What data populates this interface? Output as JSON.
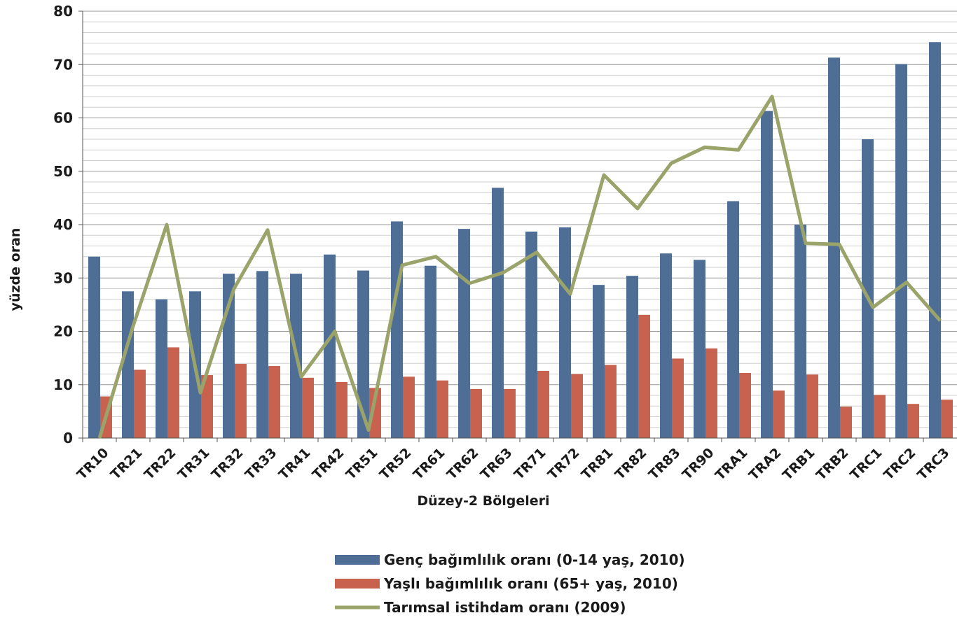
{
  "chart_data": {
    "type": "bar_line",
    "xlabel": "Düzey-2 Bölgeleri",
    "ylabel": "yüzde oran",
    "categories": [
      "TR10",
      "TR21",
      "TR22",
      "TR31",
      "TR32",
      "TR33",
      "TR41",
      "TR42",
      "TR51",
      "TR52",
      "TR61",
      "TR62",
      "TR63",
      "TR71",
      "TR72",
      "TR81",
      "TR82",
      "TR83",
      "TR90",
      "TRA1",
      "TRA2",
      "TRB1",
      "TRB2",
      "TRC1",
      "TRC2",
      "TRC3"
    ],
    "series": [
      {
        "name": "Genç bağımlılık oranı (0-14 yaş, 2010)",
        "type": "bar",
        "color": "#4f6e96",
        "values": [
          34,
          27.5,
          26,
          27.5,
          30.8,
          31.3,
          30.8,
          34.4,
          31.4,
          40.6,
          32.3,
          39.2,
          46.9,
          38.7,
          39.5,
          28.7,
          30.4,
          34.6,
          33.4,
          44.4,
          61.3,
          40,
          71.3,
          56,
          70.1,
          74.2
        ]
      },
      {
        "name": "Yaşlı bağımlılık oranı (65+ yaş, 2010)",
        "type": "bar",
        "color": "#c8624f",
        "values": [
          7.8,
          12.8,
          17,
          11.8,
          13.9,
          13.5,
          11.3,
          10.5,
          9.4,
          11.5,
          10.8,
          9.2,
          9.2,
          12.6,
          12,
          13.7,
          23.1,
          14.9,
          16.8,
          12.2,
          8.9,
          11.9,
          5.9,
          8.1,
          6.4,
          7.2
        ]
      },
      {
        "name": "Tarımsal istihdam oranı (2009)",
        "type": "line",
        "color": "#9aa36a",
        "values": [
          0,
          21,
          40,
          8.5,
          28,
          39,
          11.5,
          20,
          1.5,
          32.4,
          34,
          29,
          31,
          34.8,
          27,
          49.3,
          43,
          51.5,
          54.5,
          54,
          64,
          36.5,
          36.3,
          24.5,
          29.2,
          22
        ]
      }
    ],
    "ylim": [
      0,
      80
    ],
    "yticks": [
      0,
      10,
      20,
      30,
      40,
      50,
      60,
      70,
      80
    ],
    "minor_yticks": [
      2,
      4,
      6,
      8,
      12,
      14,
      16,
      18,
      22,
      24,
      26,
      28,
      32,
      34,
      36,
      38,
      42,
      44,
      46,
      48,
      52,
      54,
      56,
      58,
      62,
      64,
      66,
      68,
      72,
      74,
      76,
      78
    ],
    "grid": true,
    "legend": "bottom"
  }
}
